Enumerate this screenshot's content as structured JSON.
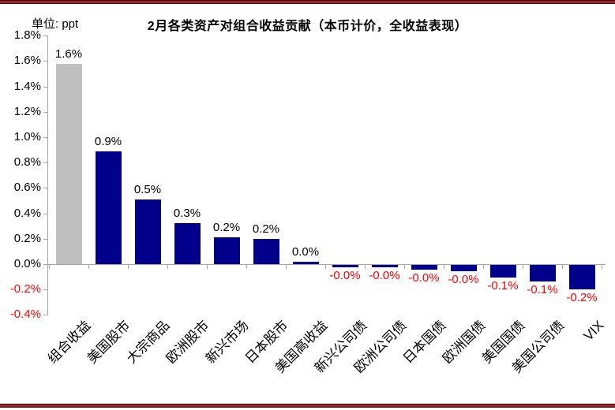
{
  "page": {
    "unit_label": "单位: ppt",
    "title": "2月各类资产对组合收益贡献（本币计价，全收益表现）"
  },
  "chart_data": {
    "type": "bar",
    "title": "2月各类资产对组合收益贡献（本币计价，全收益表现）",
    "unit": "ppt",
    "categories": [
      "组合收益",
      "美国股市",
      "大宗商品",
      "欧洲股市",
      "新兴市场",
      "日本股市",
      "美国高收益",
      "新兴公司债",
      "欧洲公司债",
      "日本国债",
      "欧洲国债",
      "美国国债",
      "美国公司债",
      "VIX"
    ],
    "values": [
      1.58,
      0.89,
      0.51,
      0.32,
      0.21,
      0.2,
      0.02,
      -0.02,
      -0.02,
      -0.04,
      -0.05,
      -0.1,
      -0.13,
      -0.19
    ],
    "data_labels": [
      "1.6%",
      "0.9%",
      "0.5%",
      "0.3%",
      "0.2%",
      "0.2%",
      "0.0%",
      "-0.0%",
      "-0.0%",
      "-0.0%",
      "-0.0%",
      "-0.1%",
      "-0.1%",
      "-0.2%"
    ],
    "ytick_labels": [
      "1.8%",
      "1.6%",
      "1.4%",
      "1.2%",
      "1.0%",
      "0.8%",
      "0.6%",
      "0.4%",
      "0.2%",
      "0.0%",
      "-0.2%",
      "-0.4%"
    ],
    "ytick_values": [
      1.8,
      1.6,
      1.4,
      1.2,
      1.0,
      0.8,
      0.6,
      0.4,
      0.2,
      0.0,
      -0.2,
      -0.4
    ],
    "ylim": [
      -0.4,
      1.8
    ],
    "grid": "off",
    "legend": "none",
    "colors": {
      "bar_default": "#00008b",
      "bar_highlight": "#bfbfbf",
      "positive_label": "#000000",
      "negative_label": "#ff0000",
      "axis": "#a6a6a6",
      "border_rule": "#9b2424"
    },
    "highlight_index": 0
  }
}
